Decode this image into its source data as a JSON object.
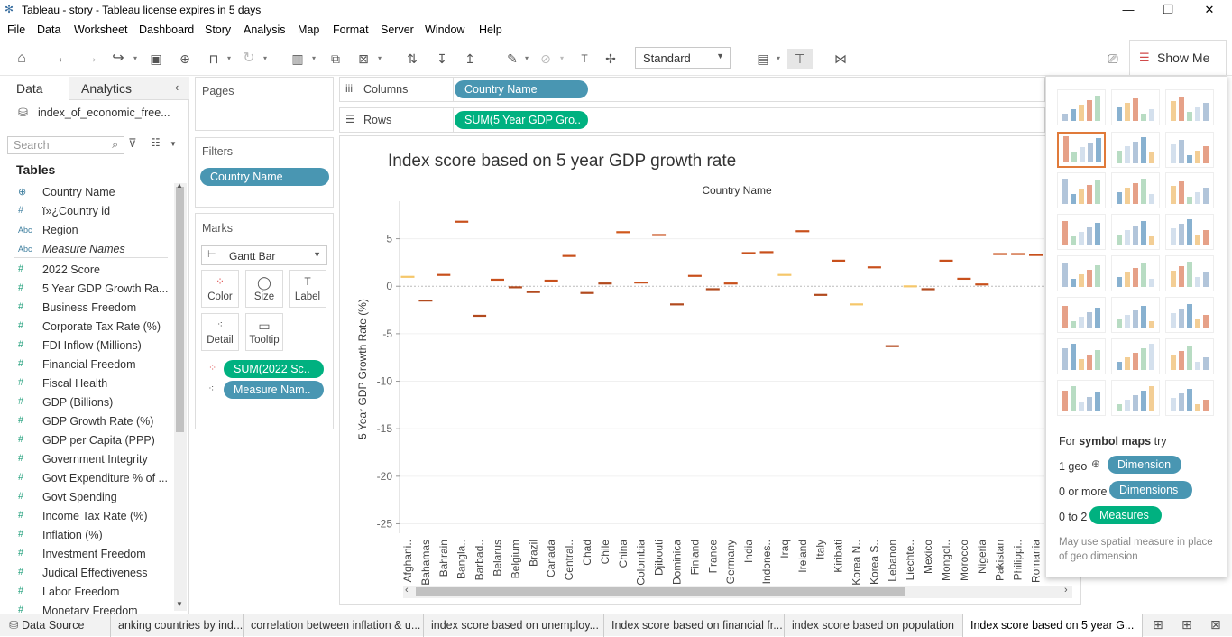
{
  "window": {
    "title": "Tableau - story - Tableau license expires in 5 days",
    "minimize": "—",
    "restore": "❐",
    "close": "✕"
  },
  "menu": [
    "File",
    "Data",
    "Worksheet",
    "Dashboard",
    "Story",
    "Analysis",
    "Map",
    "Format",
    "Server",
    "Window",
    "Help"
  ],
  "toolbar": {
    "fit_dropdown": "Standard",
    "show_me": "Show Me"
  },
  "data_pane": {
    "tab_data": "Data",
    "tab_analytics": "Analytics",
    "datasource": "index_of_economic_free...",
    "search_placeholder": "Search",
    "tables_header": "Tables",
    "fields": [
      {
        "type": "geo",
        "label": "Country Name"
      },
      {
        "type": "num",
        "label": "ï»¿Country id"
      },
      {
        "type": "abc",
        "label": "Region"
      },
      {
        "type": "abc",
        "label": "Measure Names"
      },
      {
        "type": "mea",
        "label": "2022 Score"
      },
      {
        "type": "mea",
        "label": "5 Year GDP Growth Ra..."
      },
      {
        "type": "mea",
        "label": "Business Freedom"
      },
      {
        "type": "mea",
        "label": "Corporate Tax Rate (%)"
      },
      {
        "type": "mea",
        "label": "FDI Inflow (Millions)"
      },
      {
        "type": "mea",
        "label": "Financial Freedom"
      },
      {
        "type": "mea",
        "label": "Fiscal Health"
      },
      {
        "type": "mea",
        "label": "GDP (Billions)"
      },
      {
        "type": "mea",
        "label": "GDP Growth Rate (%)"
      },
      {
        "type": "mea",
        "label": "GDP per Capita (PPP)"
      },
      {
        "type": "mea",
        "label": "Government Integrity"
      },
      {
        "type": "mea",
        "label": "Govt Expenditure % of ..."
      },
      {
        "type": "mea",
        "label": "Govt Spending"
      },
      {
        "type": "mea",
        "label": "Income Tax Rate (%)"
      },
      {
        "type": "mea",
        "label": "Inflation (%)"
      },
      {
        "type": "mea",
        "label": "Investment Freedom"
      },
      {
        "type": "mea",
        "label": "Judical Effectiveness"
      },
      {
        "type": "mea",
        "label": "Labor Freedom"
      },
      {
        "type": "mea",
        "label": "Monetary Freedom"
      }
    ]
  },
  "shelves": {
    "pages": "Pages",
    "filters": "Filters",
    "filter_pill": "Country Name",
    "marks": "Marks",
    "mark_type": "Gantt Bar",
    "mark_buttons": [
      "Color",
      "Size",
      "Label",
      "Detail",
      "Tooltip"
    ],
    "mark_pills": [
      "SUM(2022 Sc..",
      "Measure Nam.."
    ],
    "columns_label": "Columns",
    "columns_pill": "Country Name",
    "rows_label": "Rows",
    "rows_pill": "SUM(5 Year GDP Gro.."
  },
  "chart_data": {
    "type": "gantt",
    "title": "Index score based on 5 year GDP growth rate",
    "column_header": "Country Name",
    "ylabel": "5 Year GDP Growth Rate (%)",
    "ylim": [
      -26,
      8
    ],
    "yticks": [
      5,
      0,
      -5,
      -10,
      -15,
      -20,
      -25
    ],
    "categories": [
      "Afghani..",
      "Bahamas",
      "Bahrain",
      "Bangla..",
      "Barbad..",
      "Belarus",
      "Belgium",
      "Brazil",
      "Canada",
      "Central..",
      "Chad",
      "Chile",
      "China",
      "Colombia",
      "Djibouti",
      "Dominica",
      "Finland",
      "France",
      "Germany",
      "India",
      "Indones..",
      "Iraq",
      "Ireland",
      "Italy",
      "Kiribati",
      "Korea N..",
      "Korea S..",
      "Lebanon",
      "Liechte..",
      "Mexico",
      "Mongol..",
      "Morocco",
      "Nigeria",
      "Pakistan",
      "Philippi..",
      "Romania"
    ],
    "values": [
      1.0,
      -1.5,
      1.2,
      6.8,
      -3.1,
      0.7,
      -0.1,
      -0.6,
      0.6,
      3.2,
      -0.7,
      0.3,
      5.7,
      0.4,
      5.4,
      -1.9,
      1.1,
      -0.3,
      0.3,
      3.5,
      3.6,
      1.2,
      5.8,
      -0.9,
      2.7,
      -1.9,
      2.0,
      -6.3,
      0.0,
      -0.3,
      2.7,
      0.8,
      0.2,
      3.4,
      3.4,
      3.3
    ],
    "colors": [
      "#f5c76a",
      "#b24a1e",
      "#c8501c",
      "#c8501c",
      "#b24a1e",
      "#c8501c",
      "#b24a1e",
      "#b24a1e",
      "#c8501c",
      "#c8501c",
      "#b24a1e",
      "#b24a1e",
      "#d0581c",
      "#c8501c",
      "#c8501c",
      "#b24a1e",
      "#c8501c",
      "#b24a1e",
      "#c8501c",
      "#c8501c",
      "#c8501c",
      "#f5c76a",
      "#c8501c",
      "#b24a1e",
      "#c8501c",
      "#f5c76a",
      "#c8501c",
      "#b24a1e",
      "#f5c76a",
      "#b24a1e",
      "#c8501c",
      "#c8501c",
      "#c8501c",
      "#c8501c",
      "#c8501c",
      "#c8501c"
    ],
    "grid": true
  },
  "show_me": {
    "hint_prefix": "For ",
    "hint_bold": "symbol maps",
    "hint_suffix": " try",
    "req1": "1 geo",
    "req1_pill": "Dimension",
    "req2": "0 or more",
    "req2_pill": "Dimensions",
    "req3": "0 to 2",
    "req3_pill": "Measures",
    "note": "May use spatial measure in place of geo dimension"
  },
  "bottom_tabs": {
    "datasource": "Data Source",
    "sheets": [
      "anking countries by ind...",
      "correlation between inflation & u...",
      "index score based on unemploy...",
      "Index score based on financial fr...",
      "index score based on population",
      "Index score based on 5 year G..."
    ]
  },
  "colors": {
    "dimension": "#4996b2",
    "measure": "#00b180",
    "selected_thumb": "#e07a3a"
  }
}
